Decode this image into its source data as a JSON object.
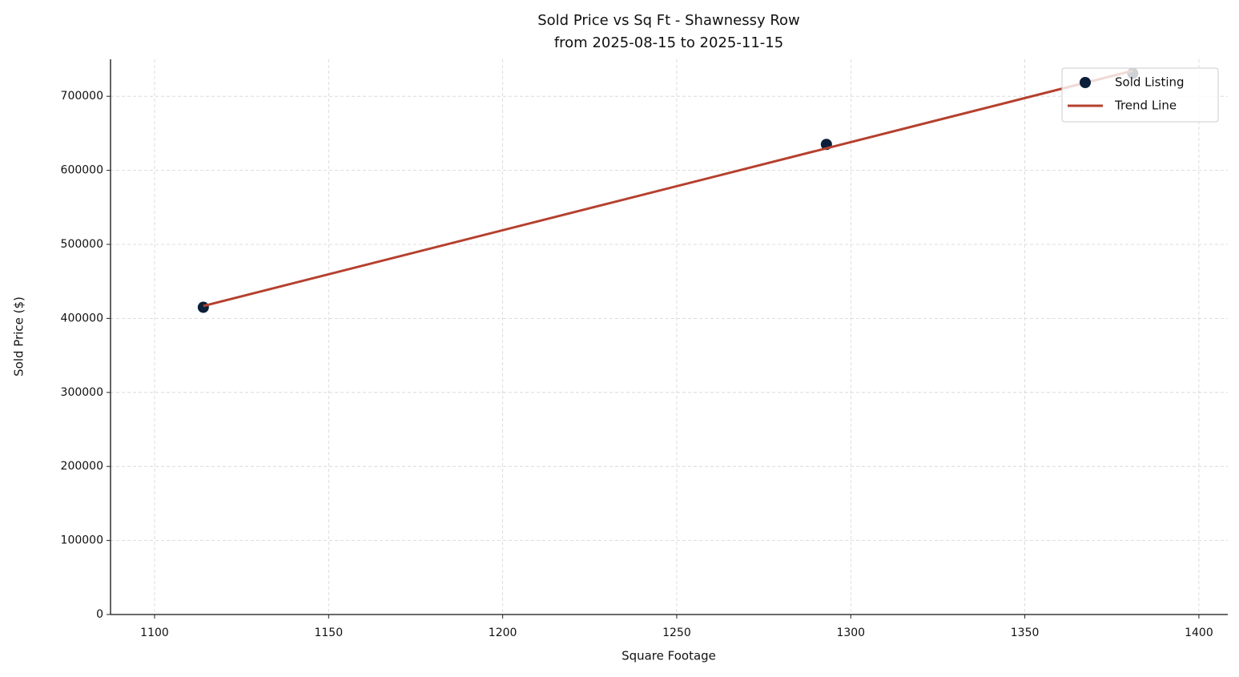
{
  "chart_data": {
    "type": "scatter",
    "title": "Sold Price vs Sq Ft - Shawnessy Row",
    "subtitle": "from 2025-08-15 to 2025-11-15",
    "x_label": "Square Footage",
    "y_label": "Sold Price ($)",
    "series": [
      {
        "name": "Sold Listing",
        "type": "scatter",
        "color": "#0b1f3a",
        "x": [
          1114,
          1293,
          1381
        ],
        "values": [
          415000,
          635000,
          731000
        ]
      },
      {
        "name": "Trend Line",
        "type": "line",
        "color": "#b5402e",
        "x": [
          1114,
          1381
        ],
        "values": [
          416750,
          734480
        ]
      }
    ],
    "xlim": [
      1087.35,
      1408.3
    ],
    "ylim": [
      0,
      750000
    ],
    "xticks": [
      1100,
      1150,
      1200,
      1250,
      1300,
      1350,
      1400
    ],
    "yticks": [
      0,
      100000,
      200000,
      300000,
      400000,
      500000,
      600000,
      700000
    ],
    "grid": true,
    "legend": "upper-right"
  }
}
